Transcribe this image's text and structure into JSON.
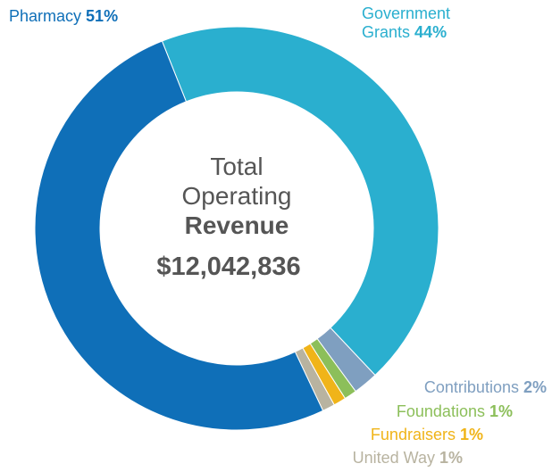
{
  "chart_data": {
    "type": "donut",
    "center_lines": [
      "Total",
      "Operating"
    ],
    "center_bold": "Revenue",
    "total": "$12,042,836",
    "categories": [
      "Government Grants",
      "Contributions",
      "Foundations",
      "Fundraisers",
      "United Way",
      "Pharmacy"
    ],
    "values": [
      44,
      2,
      1,
      1,
      1,
      51
    ],
    "value_labels": [
      "44%",
      "2%",
      "1%",
      "1%",
      "1%",
      "51%"
    ],
    "colors": [
      "#2aafcf",
      "#7f9fc0",
      "#8cbf5a",
      "#f0b419",
      "#b8b3a0",
      "#0f6fb8"
    ]
  }
}
